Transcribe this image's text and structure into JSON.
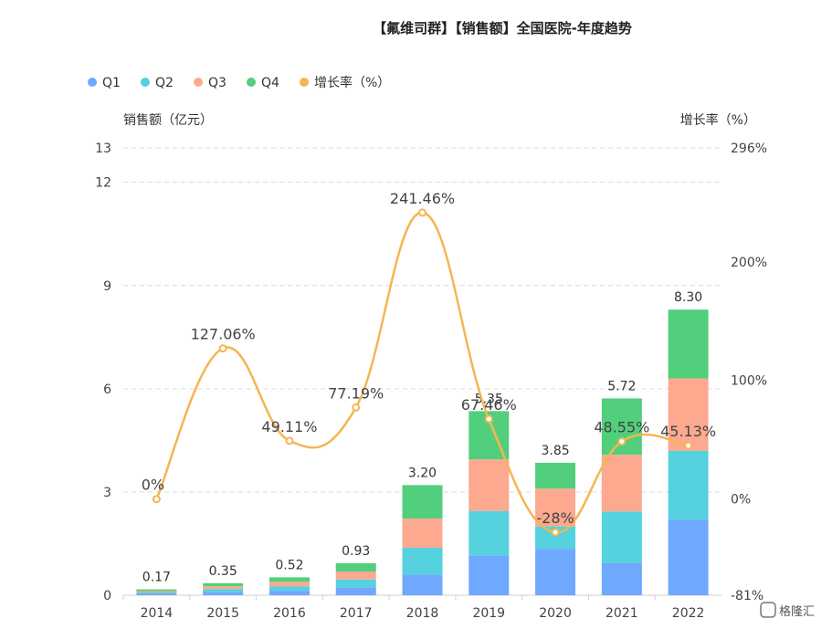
{
  "title": "【氟维司群】【销售额】全国医院-年度趋势",
  "watermark": "格隆汇",
  "legend": [
    {
      "name": "Q1",
      "color": "#6fa8ff"
    },
    {
      "name": "Q2",
      "color": "#56d1de"
    },
    {
      "name": "Q3",
      "color": "#fda98f"
    },
    {
      "name": "Q4",
      "color": "#52cf7c"
    },
    {
      "name": "增长率（%）",
      "color": "#f5b553"
    }
  ],
  "chart_data": {
    "type": "bar",
    "stacked": true,
    "categories": [
      "2014",
      "2015",
      "2016",
      "2017",
      "2018",
      "2019",
      "2020",
      "2021",
      "2022"
    ],
    "series": [
      {
        "name": "Q1",
        "color": "#6fa8ff",
        "values": [
          0.04,
          0.09,
          0.13,
          0.23,
          0.6,
          1.15,
          1.35,
          0.93,
          2.2
        ]
      },
      {
        "name": "Q2",
        "color": "#56d1de",
        "values": [
          0.04,
          0.09,
          0.13,
          0.23,
          0.78,
          1.3,
          0.65,
          1.5,
          2.0
        ]
      },
      {
        "name": "Q3",
        "color": "#fda98f",
        "values": [
          0.04,
          0.08,
          0.13,
          0.23,
          0.85,
          1.5,
          1.1,
          1.65,
          2.1
        ]
      },
      {
        "name": "Q4",
        "color": "#52cf7c",
        "values": [
          0.05,
          0.09,
          0.13,
          0.24,
          0.97,
          1.4,
          0.75,
          1.64,
          2.0
        ]
      }
    ],
    "totals": [
      "0.17",
      "0.35",
      "0.52",
      "0.93",
      "3.20",
      "5.35",
      "3.85",
      "5.72",
      "8.30"
    ],
    "growth": {
      "name": "增长率（%）",
      "color": "#f5b553",
      "values": [
        0,
        127.06,
        49.11,
        77.19,
        241.46,
        67.46,
        -28,
        48.55,
        45.13
      ],
      "labels": [
        "0%",
        "127.06%",
        "49.11%",
        "77.19%",
        "241.46%",
        "67.46%",
        "-28%",
        "48.55%",
        "45.13%"
      ]
    },
    "y_left": {
      "label": "销售额（亿元）",
      "min": 0,
      "max": 13,
      "ticks": [
        "0",
        "3",
        "6",
        "9",
        "12",
        "13"
      ],
      "tick_values": [
        0,
        3,
        6,
        9,
        12,
        13
      ]
    },
    "y_right": {
      "label": "增长率（%）",
      "min": -81,
      "max": 296,
      "ticks": [
        "-81%",
        "0%",
        "100%",
        "200%",
        "296%"
      ],
      "tick_values": [
        -81,
        0,
        100,
        200,
        296
      ]
    },
    "grid": true,
    "legend_position": "top-left"
  }
}
